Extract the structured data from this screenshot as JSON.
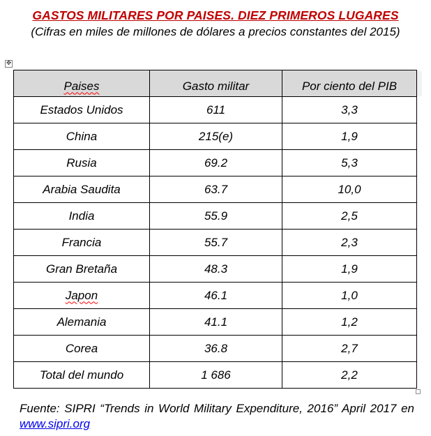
{
  "document": {
    "title": "GASTOS MILITARES POR PAISES. DIEZ PRIMEROS LUGARES",
    "subtitle": "(Cifras en miles de millones de dólares a precios constantes del 2015)"
  },
  "table": {
    "headers": [
      "Paises",
      "Gasto militar",
      "Por ciento del PIB"
    ],
    "rows": [
      {
        "country": "Estados Unidos",
        "spending": "611",
        "pct_gdp": "3,3"
      },
      {
        "country": "China",
        "spending": "215(e)",
        "pct_gdp": "1,9"
      },
      {
        "country": "Rusia",
        "spending": "69.2",
        "pct_gdp": "5,3"
      },
      {
        "country": "Arabia Saudita",
        "spending": "63.7",
        "pct_gdp": "10,0"
      },
      {
        "country": "India",
        "spending": "55.9",
        "pct_gdp": "2,5"
      },
      {
        "country": "Francia",
        "spending": "55.7",
        "pct_gdp": "2,3"
      },
      {
        "country": "Gran Bretaña",
        "spending": "48.3",
        "pct_gdp": "1,9"
      },
      {
        "country": "Japon",
        "spending": "46.1",
        "pct_gdp": "1,0"
      },
      {
        "country": "Alemania",
        "spending": "41.1",
        "pct_gdp": "1,2"
      },
      {
        "country": "Corea",
        "spending": "36.8",
        "pct_gdp": "2,7"
      },
      {
        "country": "Total del mundo",
        "spending": "1 686",
        "pct_gdp": "2,2"
      }
    ]
  },
  "source": {
    "text": "Fuente: SIPRI “Trends in World Military Expenditure, 2016” April 2017 en ",
    "link": "www.sipri.org"
  },
  "colors": {
    "title": "#c00000",
    "header_bg": "#d9d9d9",
    "link": "#0000ee"
  },
  "icons": {
    "table_move_handle": "four-arrows-move-icon",
    "table_resize_handle": "resize-square-icon"
  }
}
